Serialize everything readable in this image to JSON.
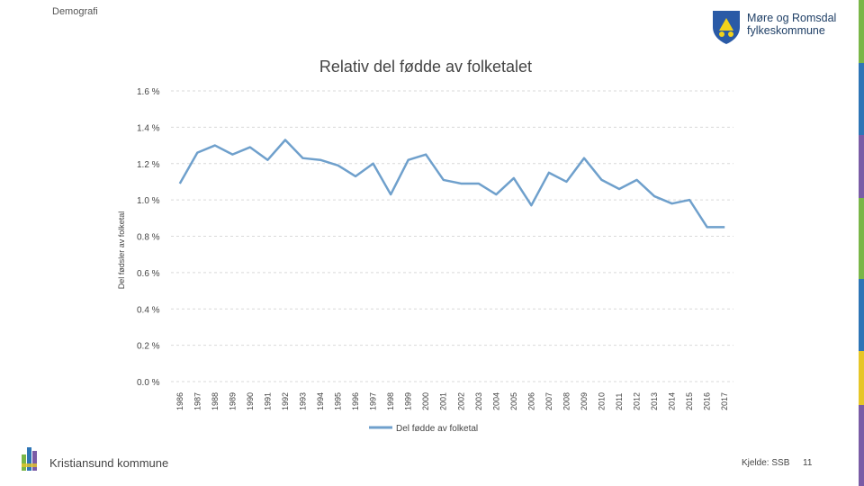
{
  "header": {
    "section": "Demografi"
  },
  "logo": {
    "line1": "Møre og Romsdal",
    "line2": "fylkeskommune"
  },
  "footer": {
    "municipality": "Kristiansund kommune",
    "source": "Kjelde: SSB",
    "page": "11"
  },
  "colors": {
    "line": "#6fa0cc",
    "grid": "#d9d9d9",
    "stripe_green": "#7ab648",
    "stripe_blue": "#2e75b6",
    "stripe_purple": "#7a5ca6",
    "stripe_yellow": "#e6c627"
  },
  "chart_data": {
    "type": "line",
    "title": "Relativ del fødde av folketalet",
    "ylabel": "Del fødsler av folketal",
    "xlabel": "",
    "ylim": [
      0,
      1.6
    ],
    "yticks": [
      0.0,
      0.2,
      0.4,
      0.6,
      0.8,
      1.0,
      1.2,
      1.4,
      1.6
    ],
    "ytick_labels": [
      "0.0 %",
      "0.2 %",
      "0.4 %",
      "0.6 %",
      "0.8 %",
      "1.0 %",
      "1.2 %",
      "1.4 %",
      "1.6 %"
    ],
    "categories": [
      "1986",
      "1987",
      "1988",
      "1989",
      "1990",
      "1991",
      "1992",
      "1993",
      "1994",
      "1995",
      "1996",
      "1997",
      "1998",
      "1999",
      "2000",
      "2001",
      "2002",
      "2003",
      "2004",
      "2005",
      "2006",
      "2007",
      "2008",
      "2009",
      "2010",
      "2011",
      "2012",
      "2013",
      "2014",
      "2015",
      "2016",
      "2017"
    ],
    "series": [
      {
        "name": "Del fødde av folketal",
        "values": [
          1.09,
          1.26,
          1.3,
          1.25,
          1.29,
          1.22,
          1.33,
          1.23,
          1.22,
          1.19,
          1.13,
          1.2,
          1.03,
          1.22,
          1.25,
          1.11,
          1.09,
          1.09,
          1.03,
          1.12,
          0.97,
          1.15,
          1.1,
          1.23,
          1.11,
          1.06,
          1.11,
          1.02,
          0.98,
          1.0,
          0.85,
          0.85
        ]
      }
    ],
    "legend": "bottom"
  }
}
